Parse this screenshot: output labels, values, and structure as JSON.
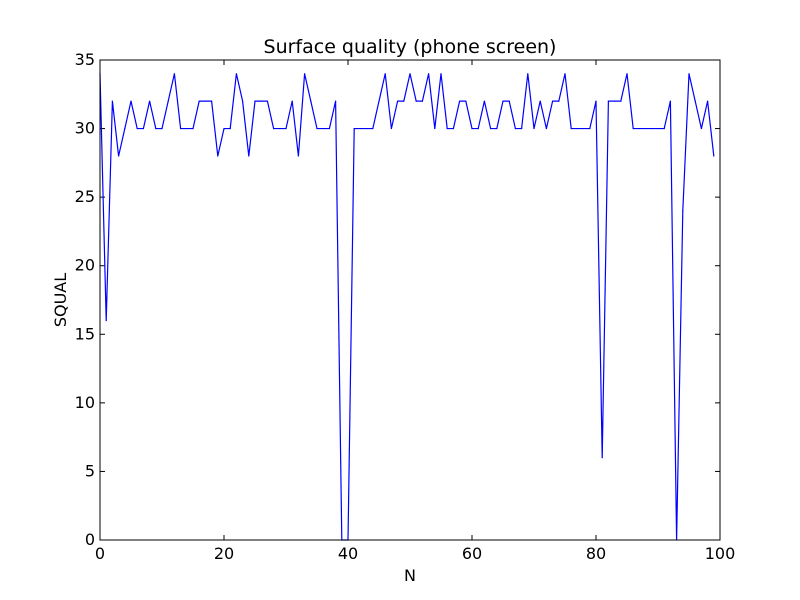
{
  "figure": {
    "background": "#ffffff"
  },
  "chart_data": {
    "type": "line",
    "title": "Surface quality (phone screen)",
    "xlabel": "N",
    "ylabel": "SQUAL",
    "xlim": [
      0,
      100
    ],
    "ylim": [
      0,
      35
    ],
    "xticks": [
      0,
      20,
      40,
      60,
      80,
      100
    ],
    "yticks": [
      0,
      5,
      10,
      15,
      20,
      25,
      30,
      35
    ],
    "grid": false,
    "legend": false,
    "series": [
      {
        "color": "#0000ff",
        "x": [
          0,
          1,
          2,
          3,
          4,
          5,
          6,
          7,
          8,
          9,
          10,
          11,
          12,
          13,
          14,
          15,
          16,
          17,
          18,
          19,
          20,
          21,
          22,
          23,
          24,
          25,
          26,
          27,
          28,
          29,
          30,
          31,
          32,
          33,
          34,
          35,
          36,
          37,
          38,
          39,
          40,
          41,
          42,
          43,
          44,
          45,
          46,
          47,
          48,
          49,
          50,
          51,
          52,
          53,
          54,
          55,
          56,
          57,
          58,
          59,
          60,
          61,
          62,
          63,
          64,
          65,
          66,
          67,
          68,
          69,
          70,
          71,
          72,
          73,
          74,
          75,
          76,
          77,
          78,
          79,
          80,
          81,
          82,
          83,
          84,
          85,
          86,
          87,
          88,
          89,
          90,
          91,
          92,
          93,
          94,
          95,
          96,
          97,
          98,
          99
        ],
        "y": [
          34,
          16,
          32,
          28,
          30,
          32,
          30,
          30,
          32,
          30,
          30,
          32,
          34,
          30,
          30,
          30,
          32,
          32,
          32,
          28,
          30,
          30,
          34,
          32,
          28,
          32,
          32,
          32,
          30,
          30,
          30,
          32,
          28,
          34,
          32,
          30,
          30,
          30,
          32,
          0,
          0,
          30,
          30,
          30,
          30,
          32,
          34,
          30,
          32,
          32,
          34,
          32,
          32,
          34,
          30,
          34,
          30,
          30,
          32,
          32,
          30,
          30,
          32,
          30,
          30,
          32,
          32,
          30,
          30,
          34,
          30,
          32,
          30,
          32,
          32,
          34,
          30,
          30,
          30,
          30,
          32,
          6,
          32,
          32,
          32,
          34,
          30,
          30,
          30,
          30,
          30,
          30,
          32,
          0,
          24,
          34,
          32,
          30,
          32,
          28
        ]
      }
    ]
  }
}
